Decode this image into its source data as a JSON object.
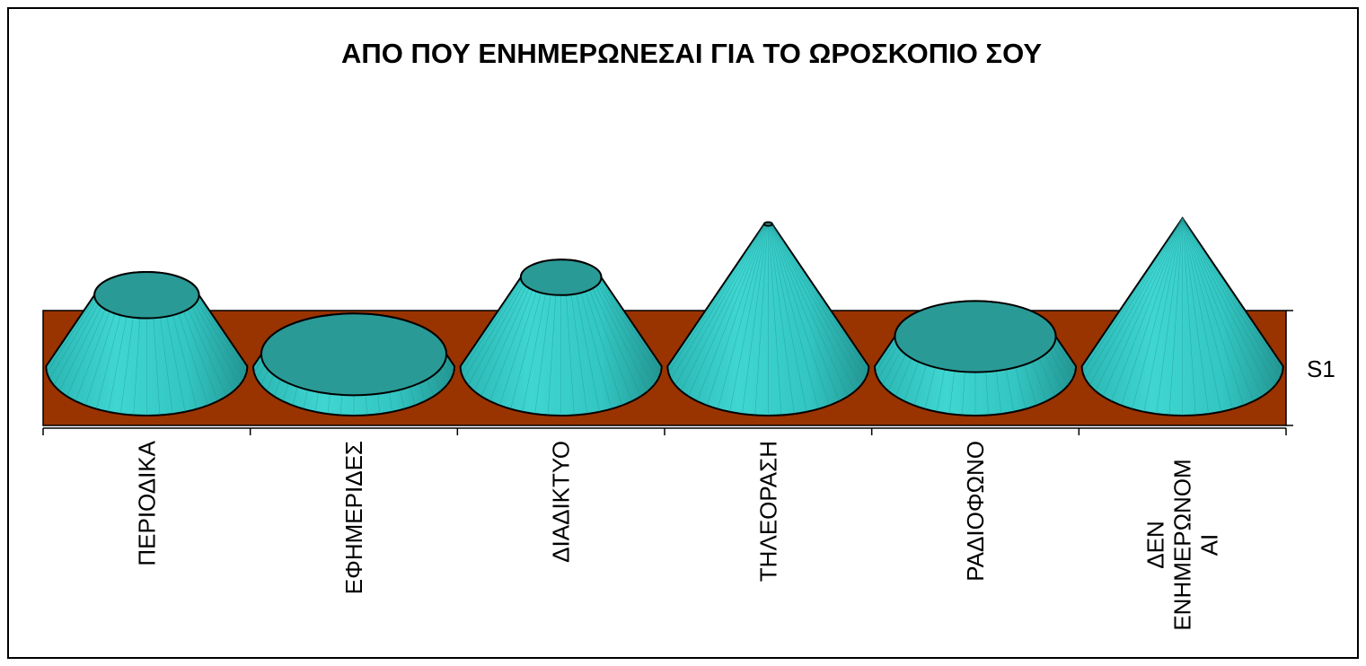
{
  "chart_data": {
    "type": "cone",
    "title": "ΑΠΟ ΠΟΥ ΕΝΗΜΕΡΩΝΕΣΑΙ ΓΙΑ ΤΟ ΩΡΟΣΚΟΠΙΟ ΣΟΥ",
    "categories": [
      "ΠΕΡΙΟΔΙΚΑ",
      "ΕΦΗΜΕΡΙΔΕΣ",
      "ΔΙΑΔΙΚΤΥΟ",
      "ΤΗΛΕΟΡΑΣΗ",
      "ΡΑΔΙΟΦΩΝΟ",
      "ΔΕΝ ΕΝΗΜΕΡΩΝΟΜΑΙ"
    ],
    "series": [
      {
        "name": "S1",
        "color": "#33cccc",
        "values": [
          12,
          2,
          15,
          24,
          5,
          25
        ]
      }
    ],
    "wall_color": "#993300"
  }
}
